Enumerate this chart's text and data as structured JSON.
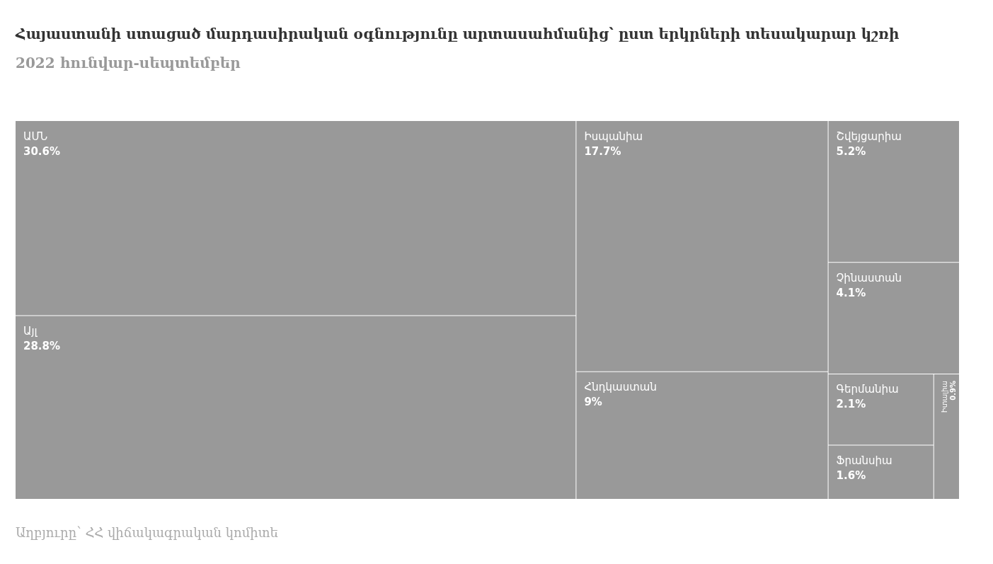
{
  "chart_data": {
    "type": "other",
    "title": "Հայաստանի ստացած մարդասիրական օգնությունը արտասահմանից՝ ըստ երկրների տեսակարար կշռի",
    "subtitle": "2022 հունվար-սեպտեմբեր",
    "categories": [
      "ԱՄՆ",
      "Այլ",
      "Իսպանիա",
      "Հնդկաստան",
      "Շվեյցարիա",
      "Չինաստան",
      "Գերմանիա",
      "Ֆրանսիա",
      "Իտալիա"
    ],
    "values": [
      30.6,
      28.8,
      17.7,
      9,
      5.2,
      4.1,
      2.1,
      1.6,
      0.9
    ],
    "value_labels": [
      "30.6%",
      "28.8%",
      "17.7%",
      "9%",
      "5.2%",
      "4.1%",
      "2.1%",
      "1.6%",
      "0.9%"
    ],
    "color": "#999999",
    "annotations": [
      "Աղբյուրը՝ ՀՀ վիճակագրական կոմիտե"
    ]
  }
}
